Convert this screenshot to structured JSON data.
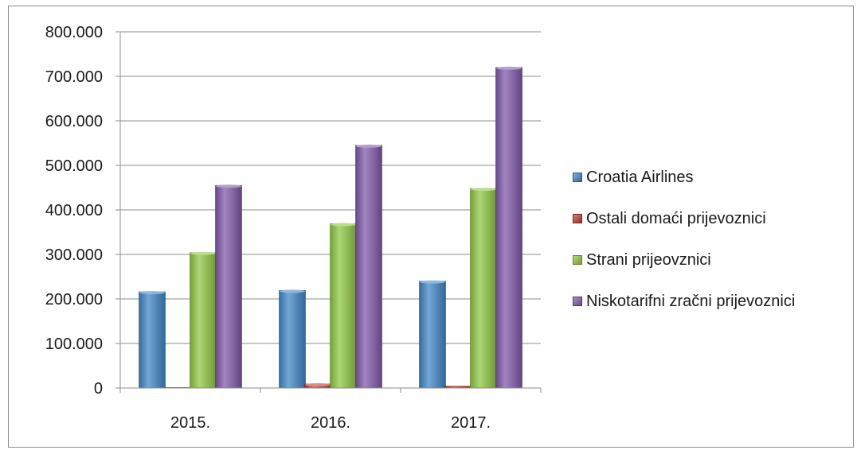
{
  "chart_data": {
    "type": "bar",
    "categories": [
      "2015.",
      "2016.",
      "2017."
    ],
    "series": [
      {
        "name": "Croatia Airlines",
        "color": "#3d85c6",
        "values": [
          216000,
          219000,
          240000
        ]
      },
      {
        "name": "Ostali domaći prijevoznici",
        "color": "#c0392b",
        "values": [
          1000,
          9000,
          4000
        ]
      },
      {
        "name": "Strani prijeovznici",
        "color": "#8dc63f",
        "values": [
          304000,
          369000,
          448000
        ]
      },
      {
        "name": "Niskotarifni zračni prijevoznici",
        "color": "#7e57a8",
        "values": [
          455000,
          545000,
          720000
        ]
      }
    ],
    "ylim": [
      0,
      800000
    ],
    "yticks": [
      0,
      100000,
      200000,
      300000,
      400000,
      500000,
      600000,
      700000,
      800000
    ],
    "ytick_labels": [
      "0",
      "100.000",
      "200.000",
      "300.000",
      "400.000",
      "500.000",
      "600.000",
      "700.000",
      "800.000"
    ],
    "grid": true,
    "legend_position": "right"
  }
}
